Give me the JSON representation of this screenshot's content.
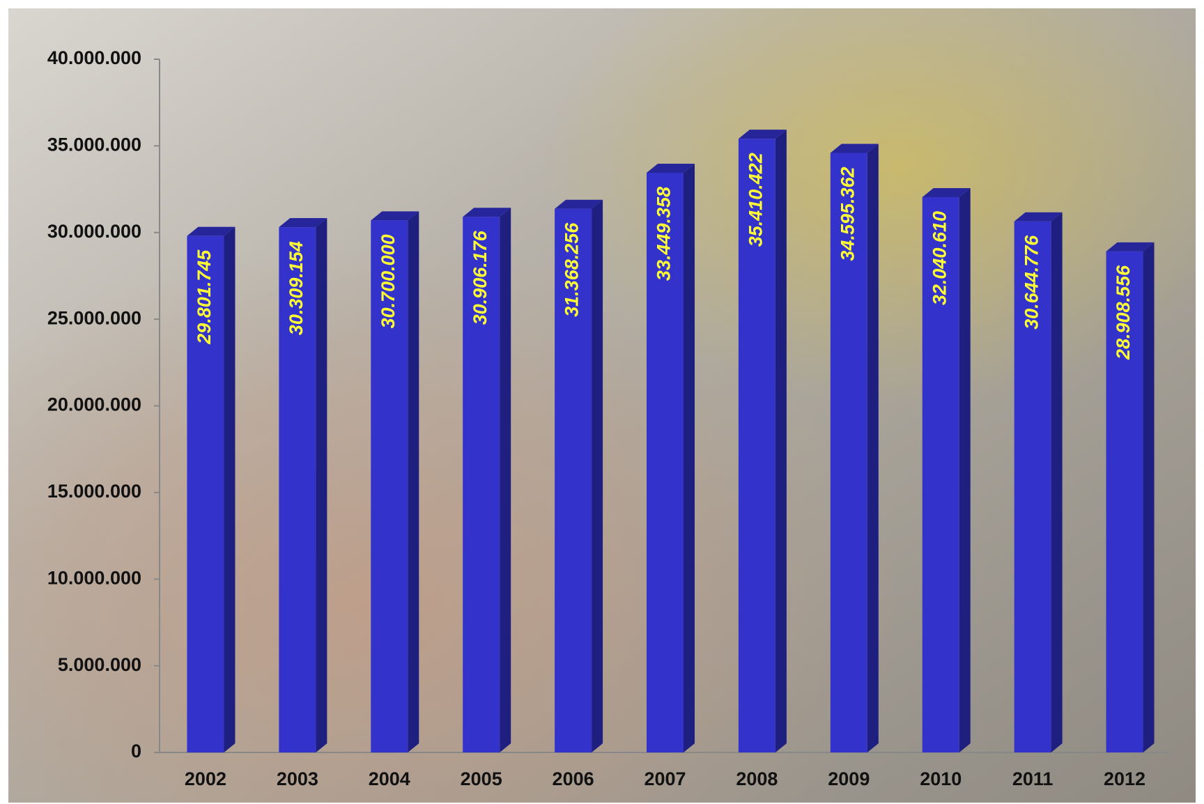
{
  "chart_data": {
    "type": "bar3d",
    "categories": [
      "2002",
      "2003",
      "2004",
      "2005",
      "2006",
      "2007",
      "2008",
      "2009",
      "2010",
      "2011",
      "2012"
    ],
    "values": [
      29801745,
      30309154,
      30700000,
      30906176,
      31368256,
      33449358,
      35410422,
      34595362,
      32040610,
      30644776,
      28908556
    ],
    "value_labels": [
      "29.801.745",
      "30.309.154",
      "30.700.000",
      "30.906.176",
      "31.368.256",
      "33.449.358",
      "35.410.422",
      "34.595.362",
      "32.040.610",
      "30.644.776",
      "28.908.556"
    ],
    "color": "#3333cc",
    "ylim": [
      0,
      40000000
    ],
    "yticks": [
      0,
      {
        "value": 5000000,
        "label": "5.000.000"
      },
      {
        "value": 10000000,
        "label": "10.000.000"
      },
      {
        "value": 15000000,
        "label": "15.000.000"
      },
      {
        "value": 20000000,
        "label": "20.000.000"
      },
      {
        "value": 25000000,
        "label": "25.000.000"
      },
      {
        "value": 30000000,
        "label": "30.000.000"
      },
      {
        "value": 35000000,
        "label": "35.000.000"
      },
      {
        "value": 40000000,
        "label": "40.000.000"
      }
    ]
  }
}
